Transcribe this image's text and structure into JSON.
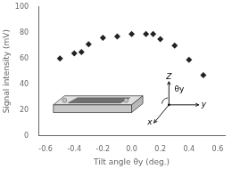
{
  "chart_data": {
    "type": "scatter",
    "x": [
      -0.5,
      -0.4,
      -0.35,
      -0.3,
      -0.2,
      -0.1,
      0.0,
      0.1,
      0.15,
      0.2,
      0.3,
      0.4,
      0.5
    ],
    "values": [
      60,
      64,
      65,
      71,
      76,
      77,
      79,
      79,
      79,
      75,
      70,
      59,
      47
    ],
    "color": "#222222",
    "marker": "diamond",
    "xlabel": "Tilt angle θy (deg.)",
    "ylabel": "Signal intensity (mV)",
    "xlim": [
      -0.65,
      0.65
    ],
    "ylim": [
      0,
      100
    ],
    "xticks": [
      -0.6,
      -0.4,
      -0.2,
      {
        "value": 0.0,
        "label": "0.0"
      },
      0.2,
      0.4,
      0.6
    ],
    "yticks": [
      0,
      20,
      40,
      60,
      80,
      100
    ],
    "grid": false,
    "annotations": [
      "Z",
      "y",
      "x",
      "θy"
    ]
  }
}
